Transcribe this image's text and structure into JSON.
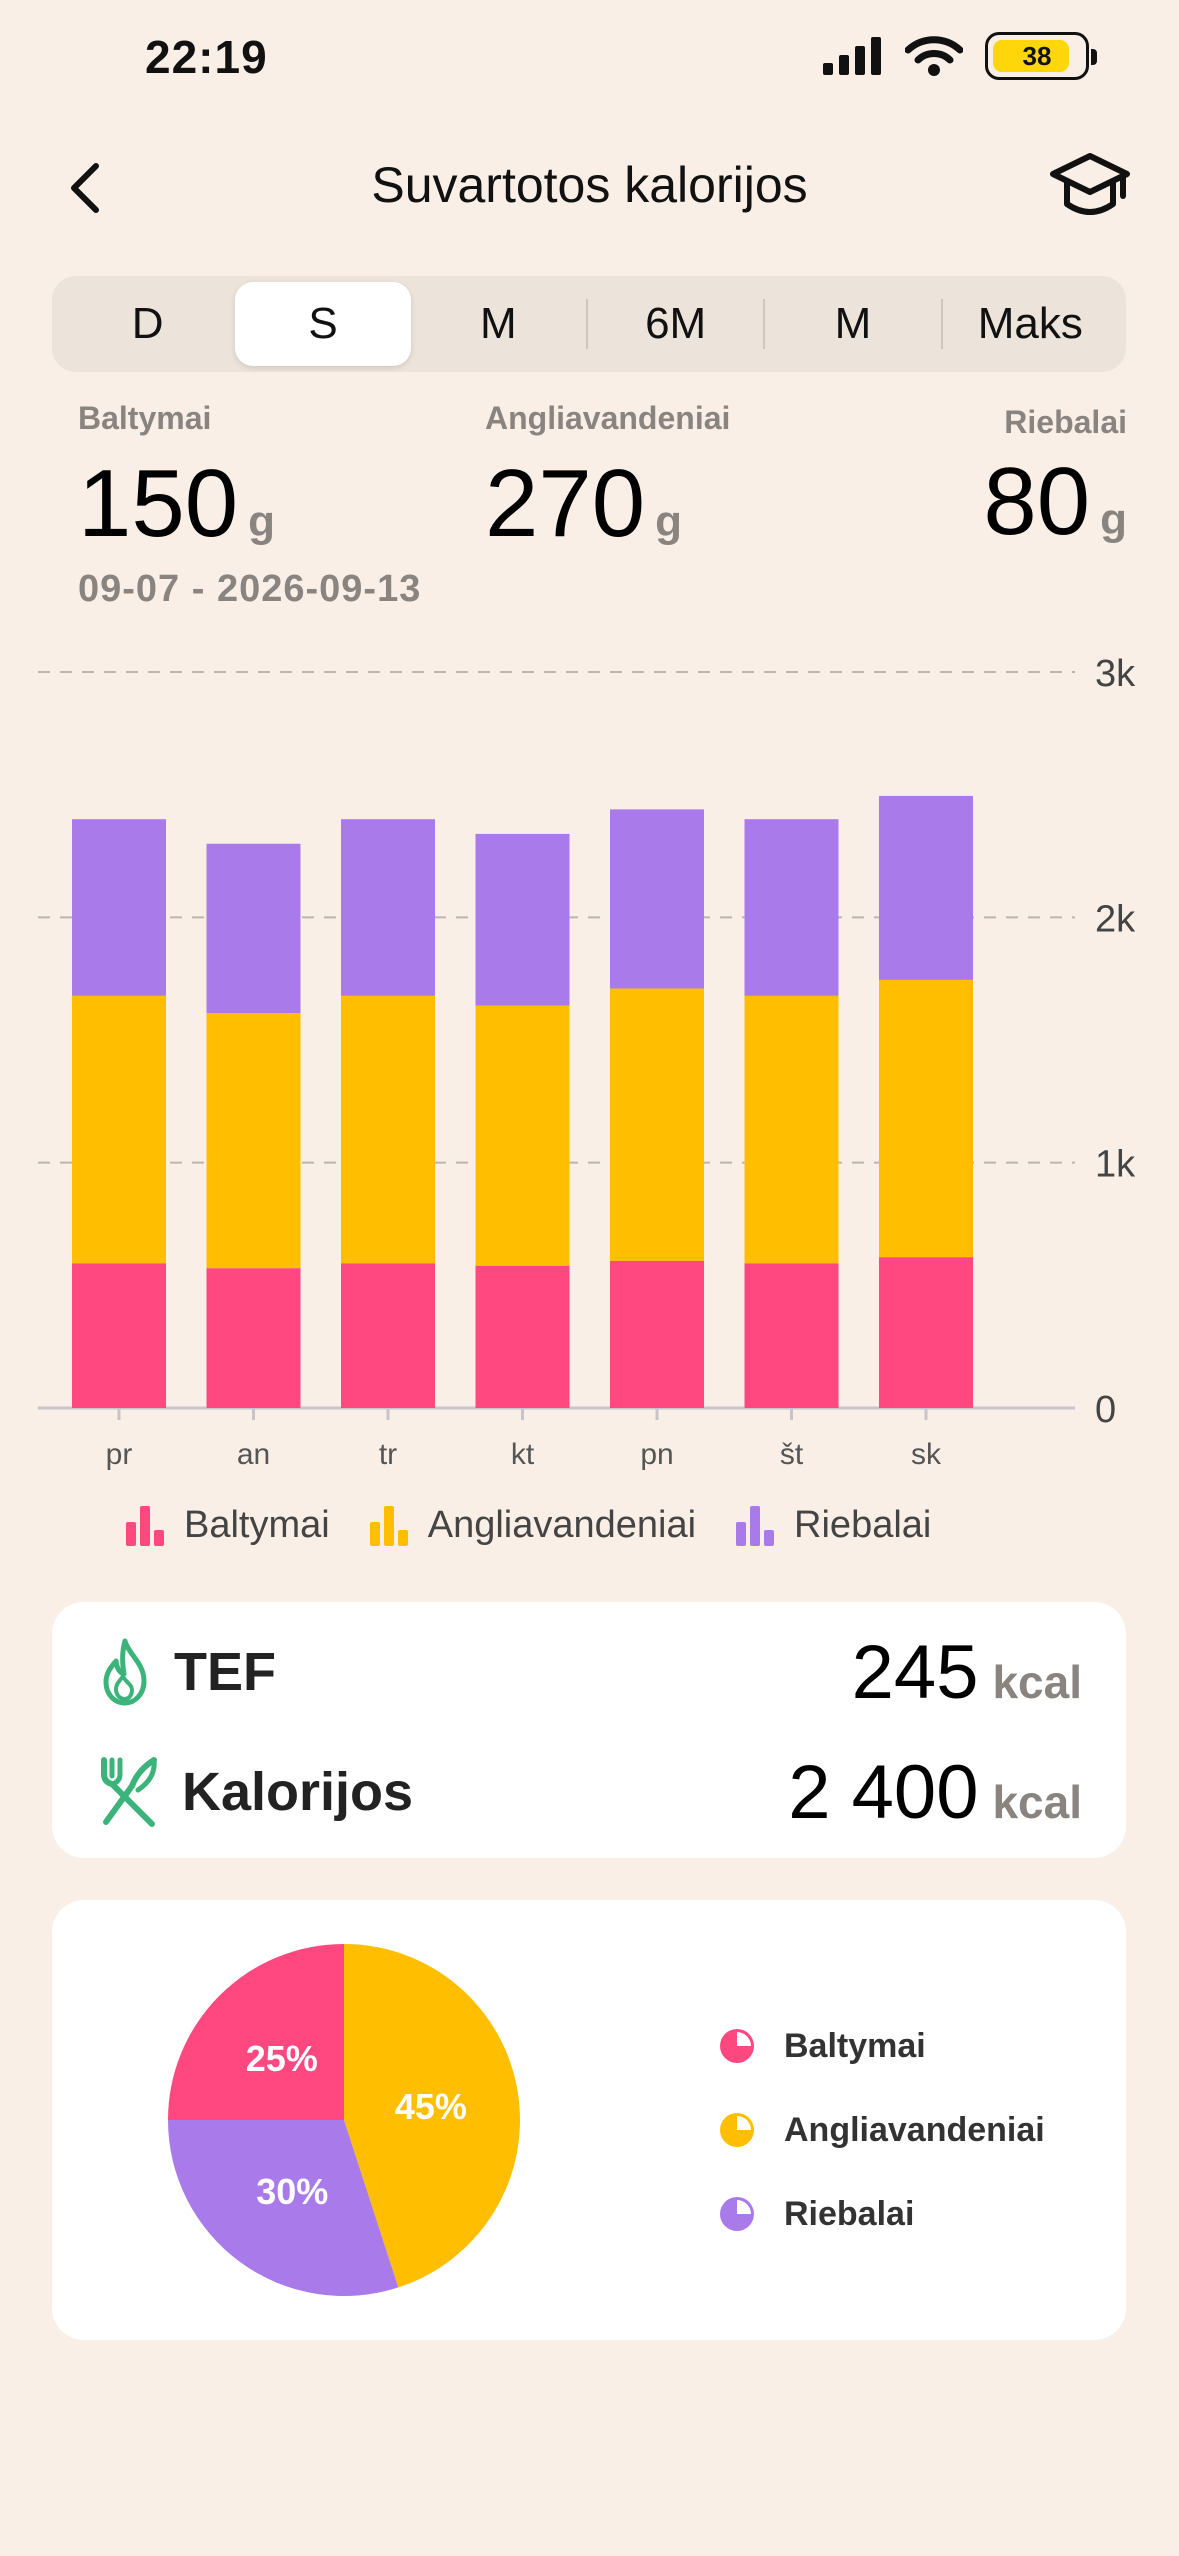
{
  "status_bar": {
    "time": "22:19",
    "battery": "38"
  },
  "nav": {
    "title": "Suvartotos kalorijos"
  },
  "tabs": [
    {
      "label": "D",
      "active": false
    },
    {
      "label": "S",
      "active": true
    },
    {
      "label": "M",
      "active": false
    },
    {
      "label": "6M",
      "active": false
    },
    {
      "label": "M",
      "active": false
    },
    {
      "label": "Maks",
      "active": false
    }
  ],
  "macros": {
    "protein": {
      "label": "Baltymai",
      "value": "150",
      "unit": "g"
    },
    "carbs": {
      "label": "Angliavandeniai",
      "value": "270",
      "unit": "g"
    },
    "fat": {
      "label": "Riebalai",
      "value": "80",
      "unit": "g"
    }
  },
  "date_range": "09-07 - 2026-09-13",
  "colors": {
    "protein": "#ff4780",
    "carbs": "#ffbf00",
    "fat": "#a97aea",
    "accent_green": "#3bb37a"
  },
  "chart_data": {
    "type": "bar",
    "stacked": true,
    "categories": [
      "pr",
      "an",
      "tr",
      "kt",
      "pn",
      "št",
      "sk"
    ],
    "series": [
      {
        "name": "Baltymai",
        "values": [
          590,
          570,
          590,
          580,
          600,
          590,
          615
        ]
      },
      {
        "name": "Angliavandeniai",
        "values": [
          1090,
          1040,
          1090,
          1060,
          1110,
          1090,
          1130
        ]
      },
      {
        "name": "Riebalai",
        "values": [
          720,
          690,
          720,
          700,
          730,
          720,
          750
        ]
      }
    ],
    "ylim": [
      0,
      3000
    ],
    "yticks": [
      0,
      1000,
      2000,
      3000
    ],
    "ytick_labels": [
      "0",
      "1k",
      "2k",
      "3k"
    ],
    "grid": true,
    "legend_position": "bottom"
  },
  "summary": {
    "tef": {
      "label": "TEF",
      "value": "245",
      "unit": "kcal"
    },
    "calories": {
      "label": "Kalorijos",
      "value": "2 400",
      "unit": "kcal"
    }
  },
  "pie": {
    "slices": [
      {
        "name": "Baltymai",
        "percent": 25,
        "label": "25%"
      },
      {
        "name": "Angliavandeniai",
        "percent": 45,
        "label": "45%"
      },
      {
        "name": "Riebalai",
        "percent": 30,
        "label": "30%"
      }
    ]
  }
}
